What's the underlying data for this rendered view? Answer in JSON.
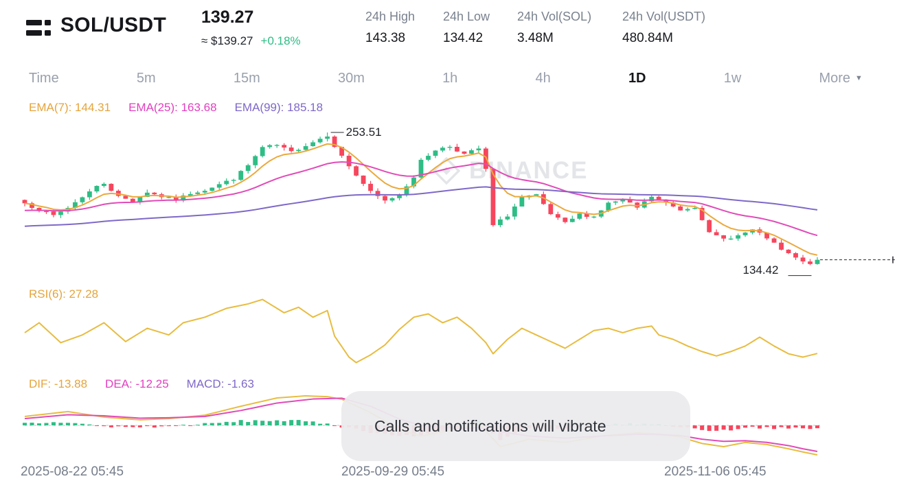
{
  "header": {
    "symbol": "SOL/USDT",
    "last_price": "139.27",
    "approx_price": "≈ $139.27",
    "change": "+0.18%",
    "stats": [
      {
        "label": "24h High",
        "value": "143.38"
      },
      {
        "label": "24h Low",
        "value": "134.42"
      },
      {
        "label": "24h Vol(SOL)",
        "value": "3.48M"
      },
      {
        "label": "24h Vol(USDT)",
        "value": "480.84M"
      }
    ]
  },
  "intervals": {
    "items": [
      "Time",
      "5m",
      "15m",
      "30m",
      "1h",
      "4h",
      "1D",
      "1w"
    ],
    "selected": "1D",
    "more": "More"
  },
  "indicators": {
    "ema_legend": [
      "EMA(7): 144.31",
      "EMA(25): 163.68",
      "EMA(99): 185.18"
    ],
    "rsi_legend": "RSI(6): 27.28",
    "macd_legend": [
      "DIF: -13.88",
      "DEA: -12.25",
      "MACD: -1.63"
    ]
  },
  "chart": {
    "high_label": "253.51",
    "low_label": "134.42"
  },
  "watermark": {
    "text": "BINANCE"
  },
  "toast": {
    "message": "Calls and notifications will vibrate"
  },
  "x_axis": [
    "2025-08-22 05:45",
    "2025-09-29 05:45",
    "2025-11-06 05:45"
  ],
  "colors": {
    "up": "#2EBD85",
    "down": "#F6465D",
    "gold_line": "#E8BC40",
    "magenta_line": "#E14BB8",
    "purple_line": "#7E68C8",
    "axis_text": "#757D8A",
    "accent_green": "#2EBD85"
  },
  "chart_data": {
    "type": "candlestick",
    "title": "SOL/USDT 1D with EMA(7,25,99), RSI(6), MACD",
    "last_close": 139.27,
    "peak_high": 253.51,
    "trough_low": 134.42,
    "candle_count": 111,
    "price_keypoints": [
      [
        0,
        190
      ],
      [
        2,
        184
      ],
      [
        4,
        179
      ],
      [
        6,
        186
      ],
      [
        8,
        196
      ],
      [
        10,
        205
      ],
      [
        11,
        208
      ],
      [
        13,
        196
      ],
      [
        15,
        192
      ],
      [
        17,
        200
      ],
      [
        19,
        196
      ],
      [
        21,
        193
      ],
      [
        23,
        199
      ],
      [
        25,
        202
      ],
      [
        27,
        207
      ],
      [
        29,
        212
      ],
      [
        31,
        224
      ],
      [
        33,
        240
      ],
      [
        35,
        242
      ],
      [
        37,
        236
      ],
      [
        39,
        242
      ],
      [
        41,
        248
      ],
      [
        42,
        251
      ],
      [
        44,
        232
      ],
      [
        46,
        215
      ],
      [
        48,
        200
      ],
      [
        50,
        192
      ],
      [
        52,
        198
      ],
      [
        54,
        214
      ],
      [
        55,
        228
      ],
      [
        57,
        238
      ],
      [
        59,
        241
      ],
      [
        61,
        234
      ],
      [
        63,
        239
      ],
      [
        64,
        220
      ],
      [
        65,
        170
      ],
      [
        67,
        179
      ],
      [
        69,
        195
      ],
      [
        71,
        197
      ],
      [
        73,
        180
      ],
      [
        75,
        172
      ],
      [
        77,
        180
      ],
      [
        79,
        178
      ],
      [
        81,
        190
      ],
      [
        83,
        193
      ],
      [
        85,
        186
      ],
      [
        87,
        196
      ],
      [
        89,
        190
      ],
      [
        91,
        184
      ],
      [
        93,
        187
      ],
      [
        94,
        176
      ],
      [
        95,
        163
      ],
      [
        97,
        158
      ],
      [
        99,
        161
      ],
      [
        101,
        166
      ],
      [
        103,
        159
      ],
      [
        105,
        148
      ],
      [
        107,
        141
      ],
      [
        108,
        137
      ],
      [
        109,
        135.5
      ],
      [
        110,
        139.27
      ]
    ],
    "ema": [
      {
        "period": 7,
        "value": 144.31,
        "seed": 190,
        "color": "#EBA93C"
      },
      {
        "period": 25,
        "value": 163.68,
        "seed": 183,
        "color": "#E14BB8"
      },
      {
        "period": 99,
        "value": 185.18,
        "seed": 169,
        "color": "#7E68C8"
      }
    ],
    "rsi": {
      "period": 6,
      "value": 27.28,
      "keypoints": [
        [
          0,
          46
        ],
        [
          2,
          55
        ],
        [
          5,
          37
        ],
        [
          8,
          44
        ],
        [
          11,
          55
        ],
        [
          14,
          38
        ],
        [
          17,
          50
        ],
        [
          20,
          44
        ],
        [
          22,
          55
        ],
        [
          25,
          60
        ],
        [
          28,
          68
        ],
        [
          31,
          72
        ],
        [
          33,
          76
        ],
        [
          36,
          64
        ],
        [
          38,
          69
        ],
        [
          40,
          60
        ],
        [
          42,
          66
        ],
        [
          43,
          43
        ],
        [
          45,
          24
        ],
        [
          46,
          19
        ],
        [
          48,
          26
        ],
        [
          50,
          35
        ],
        [
          52,
          49
        ],
        [
          54,
          60
        ],
        [
          56,
          63
        ],
        [
          58,
          55
        ],
        [
          60,
          60
        ],
        [
          62,
          50
        ],
        [
          64,
          37
        ],
        [
          65,
          27
        ],
        [
          67,
          40
        ],
        [
          69,
          50
        ],
        [
          71,
          44
        ],
        [
          73,
          38
        ],
        [
          75,
          32
        ],
        [
          77,
          40
        ],
        [
          79,
          48
        ],
        [
          81,
          50
        ],
        [
          83,
          46
        ],
        [
          85,
          50
        ],
        [
          87,
          52
        ],
        [
          88,
          44
        ],
        [
          90,
          40
        ],
        [
          92,
          34
        ],
        [
          94,
          29
        ],
        [
          96,
          25
        ],
        [
          98,
          29
        ],
        [
          100,
          34
        ],
        [
          102,
          42
        ],
        [
          104,
          34
        ],
        [
          106,
          27
        ],
        [
          108,
          24
        ],
        [
          110,
          27.28
        ]
      ]
    },
    "macd": {
      "dif": -13.88,
      "dea": -12.25,
      "macd": -1.63,
      "dif_keypoints": [
        [
          0,
          4.2
        ],
        [
          6,
          6.5
        ],
        [
          11,
          3.9
        ],
        [
          16,
          2.6
        ],
        [
          20,
          3.2
        ],
        [
          25,
          4.8
        ],
        [
          30,
          9
        ],
        [
          35,
          12.9
        ],
        [
          39,
          13.9
        ],
        [
          42,
          13.5
        ],
        [
          44,
          12.3
        ],
        [
          48,
          6
        ],
        [
          52,
          -2
        ],
        [
          55,
          -5
        ],
        [
          58,
          -3
        ],
        [
          61,
          -1
        ],
        [
          63,
          1
        ],
        [
          66,
          -10
        ],
        [
          70,
          -6.5
        ],
        [
          75,
          -8
        ],
        [
          80,
          -5
        ],
        [
          85,
          -3.5
        ],
        [
          88,
          -4
        ],
        [
          91,
          -5.5
        ],
        [
          94,
          -8.5
        ],
        [
          97,
          -10
        ],
        [
          100,
          -8
        ],
        [
          103,
          -9
        ],
        [
          106,
          -11
        ],
        [
          108,
          -12.5
        ],
        [
          110,
          -13.88
        ]
      ],
      "dea_keypoints": [
        [
          0,
          3.2
        ],
        [
          6,
          5
        ],
        [
          11,
          4.5
        ],
        [
          16,
          3.4
        ],
        [
          20,
          3.6
        ],
        [
          25,
          4.2
        ],
        [
          30,
          7
        ],
        [
          35,
          10.5
        ],
        [
          40,
          12.4
        ],
        [
          44,
          12.8
        ],
        [
          48,
          9
        ],
        [
          52,
          3
        ],
        [
          55,
          0
        ],
        [
          58,
          -1
        ],
        [
          61,
          -1.5
        ],
        [
          63,
          -1
        ],
        [
          66,
          -3
        ],
        [
          70,
          -5
        ],
        [
          75,
          -6
        ],
        [
          80,
          -5
        ],
        [
          85,
          -4.2
        ],
        [
          88,
          -4.3
        ],
        [
          91,
          -4.8
        ],
        [
          94,
          -6.5
        ],
        [
          97,
          -7.5
        ],
        [
          100,
          -7.2
        ],
        [
          103,
          -8
        ],
        [
          106,
          -9.5
        ],
        [
          108,
          -11
        ],
        [
          110,
          -12.25
        ]
      ]
    }
  }
}
